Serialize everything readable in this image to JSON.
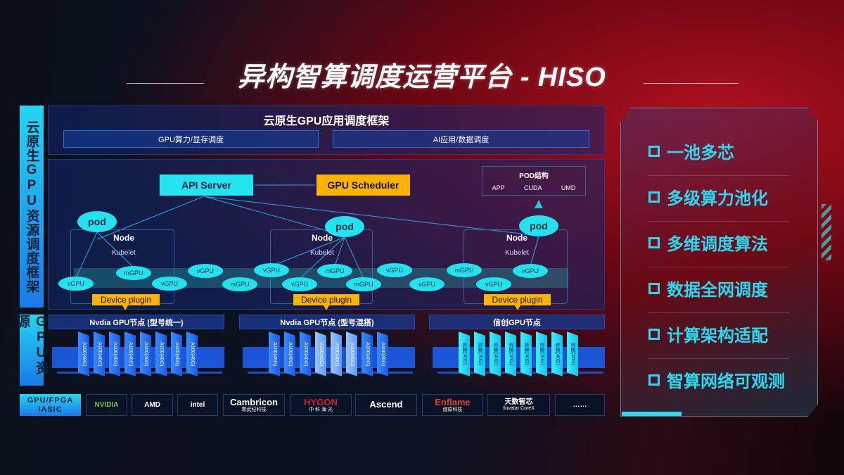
{
  "title": "异构智算调度运营平台 - HISO",
  "left_labels": {
    "framework": "云原生GPU资源调度框架",
    "resources": "GPU资源"
  },
  "top": {
    "header": "云原生GPU应用调度框架",
    "sub": [
      "GPU算力/显存调度",
      "AI应用/数据调度"
    ]
  },
  "diagram": {
    "api_server": "API Server",
    "gpu_scheduler": "GPU Scheduler",
    "pod_struct": {
      "title": "POD结构",
      "items": [
        "APP",
        "CUDA",
        "UMD"
      ]
    },
    "pod": "pod",
    "node": "Node",
    "kubelet": "Kubelet",
    "device_plugin": "Device plugin",
    "units": [
      "mGPU",
      "vGPU",
      "vGPU",
      "vGPU",
      "mGPU",
      "vGPU",
      "mGPU",
      "vGPU",
      "mGPU",
      "vGPU",
      "vGPU",
      "mGPU",
      "vGPU",
      "vGPU"
    ]
  },
  "gpu_nodes": [
    {
      "title": "Nvdia GPU节点 (型号统一)",
      "cards": [
        "A100(40G)",
        "A100(40G)",
        "A100(40G)",
        "A100(40G)",
        "A100(40G)",
        "A100(40G)",
        "A100(40G)",
        "A100(40G)"
      ]
    },
    {
      "title": "Nvdia GPU节点 (型号混搭)",
      "cards": [
        "A100(40G)",
        "A100(40G)",
        "A100(40G)",
        "V100(40G)",
        "V100(40G)",
        "V100(40G)",
        "A100(40G)",
        "A100(40G)"
      ]
    },
    {
      "title": "信创GPU节点",
      "cards": [
        "昇腾(40G)",
        "昇腾(40G)",
        "昇腾(40G)",
        "昇腾(40G)",
        "昇腾(40G)",
        "昇腾(40G)",
        "昇腾(40G)",
        "昇腾(40G)"
      ]
    }
  ],
  "vendors": {
    "label": "GPU/FPGA /ASIC",
    "logos": [
      {
        "name": "NVIDIA",
        "sub": ""
      },
      {
        "name": "AMD",
        "sub": ""
      },
      {
        "name": "intel",
        "sub": ""
      },
      {
        "name": "Cambricon",
        "sub": "寒武纪科技"
      },
      {
        "name": "HYGON",
        "sub": "中 科 海 光"
      },
      {
        "name": "Ascend",
        "sub": ""
      },
      {
        "name": "Enflame",
        "sub": "燧原科技"
      },
      {
        "name": "天数智芯",
        "sub": "Iluvatar CoreX"
      },
      {
        "name": "……",
        "sub": ""
      }
    ]
  },
  "features": [
    "一池多芯",
    "多级算力池化",
    "多维调度算法",
    "数据全网调度",
    "计算架构适配",
    "智算网络可观测"
  ],
  "colors": {
    "cyan": "#23e5f0",
    "orange": "#f8b400",
    "blue": "#1a55d8",
    "red": "#b0101e"
  }
}
